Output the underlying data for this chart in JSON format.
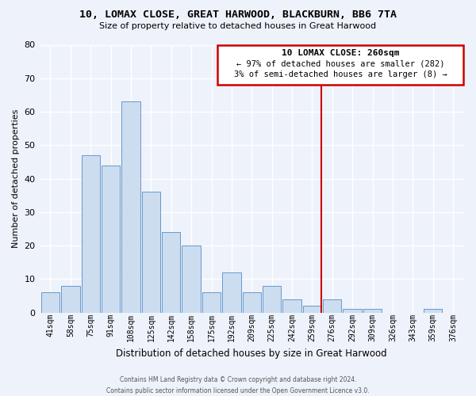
{
  "title": "10, LOMAX CLOSE, GREAT HARWOOD, BLACKBURN, BB6 7TA",
  "subtitle": "Size of property relative to detached houses in Great Harwood",
  "xlabel": "Distribution of detached houses by size in Great Harwood",
  "ylabel": "Number of detached properties",
  "bar_labels": [
    "41sqm",
    "58sqm",
    "75sqm",
    "91sqm",
    "108sqm",
    "125sqm",
    "142sqm",
    "158sqm",
    "175sqm",
    "192sqm",
    "209sqm",
    "225sqm",
    "242sqm",
    "259sqm",
    "276sqm",
    "292sqm",
    "309sqm",
    "326sqm",
    "343sqm",
    "359sqm",
    "376sqm"
  ],
  "bar_values": [
    6,
    8,
    47,
    44,
    63,
    36,
    24,
    20,
    6,
    12,
    6,
    8,
    4,
    2,
    4,
    1,
    1,
    0,
    0,
    1,
    0
  ],
  "bar_color": "#ccddf0",
  "bar_edge_color": "#6699cc",
  "ref_line_index": 13,
  "ref_line_color": "#cc0000",
  "ylim": [
    0,
    80
  ],
  "yticks": [
    0,
    10,
    20,
    30,
    40,
    50,
    60,
    70,
    80
  ],
  "annotation_title": "10 LOMAX CLOSE: 260sqm",
  "annotation_line1": "← 97% of detached houses are smaller (282)",
  "annotation_line2": "3% of semi-detached houses are larger (8) →",
  "footer1": "Contains HM Land Registry data © Crown copyright and database right 2024.",
  "footer2": "Contains public sector information licensed under the Open Government Licence v3.0.",
  "background_color": "#eef2fa",
  "grid_color": "#ffffff",
  "title_fontsize": 9.5,
  "subtitle_fontsize": 8,
  "tick_fontsize": 7,
  "ylabel_fontsize": 8,
  "xlabel_fontsize": 8.5,
  "footer_fontsize": 5.5
}
